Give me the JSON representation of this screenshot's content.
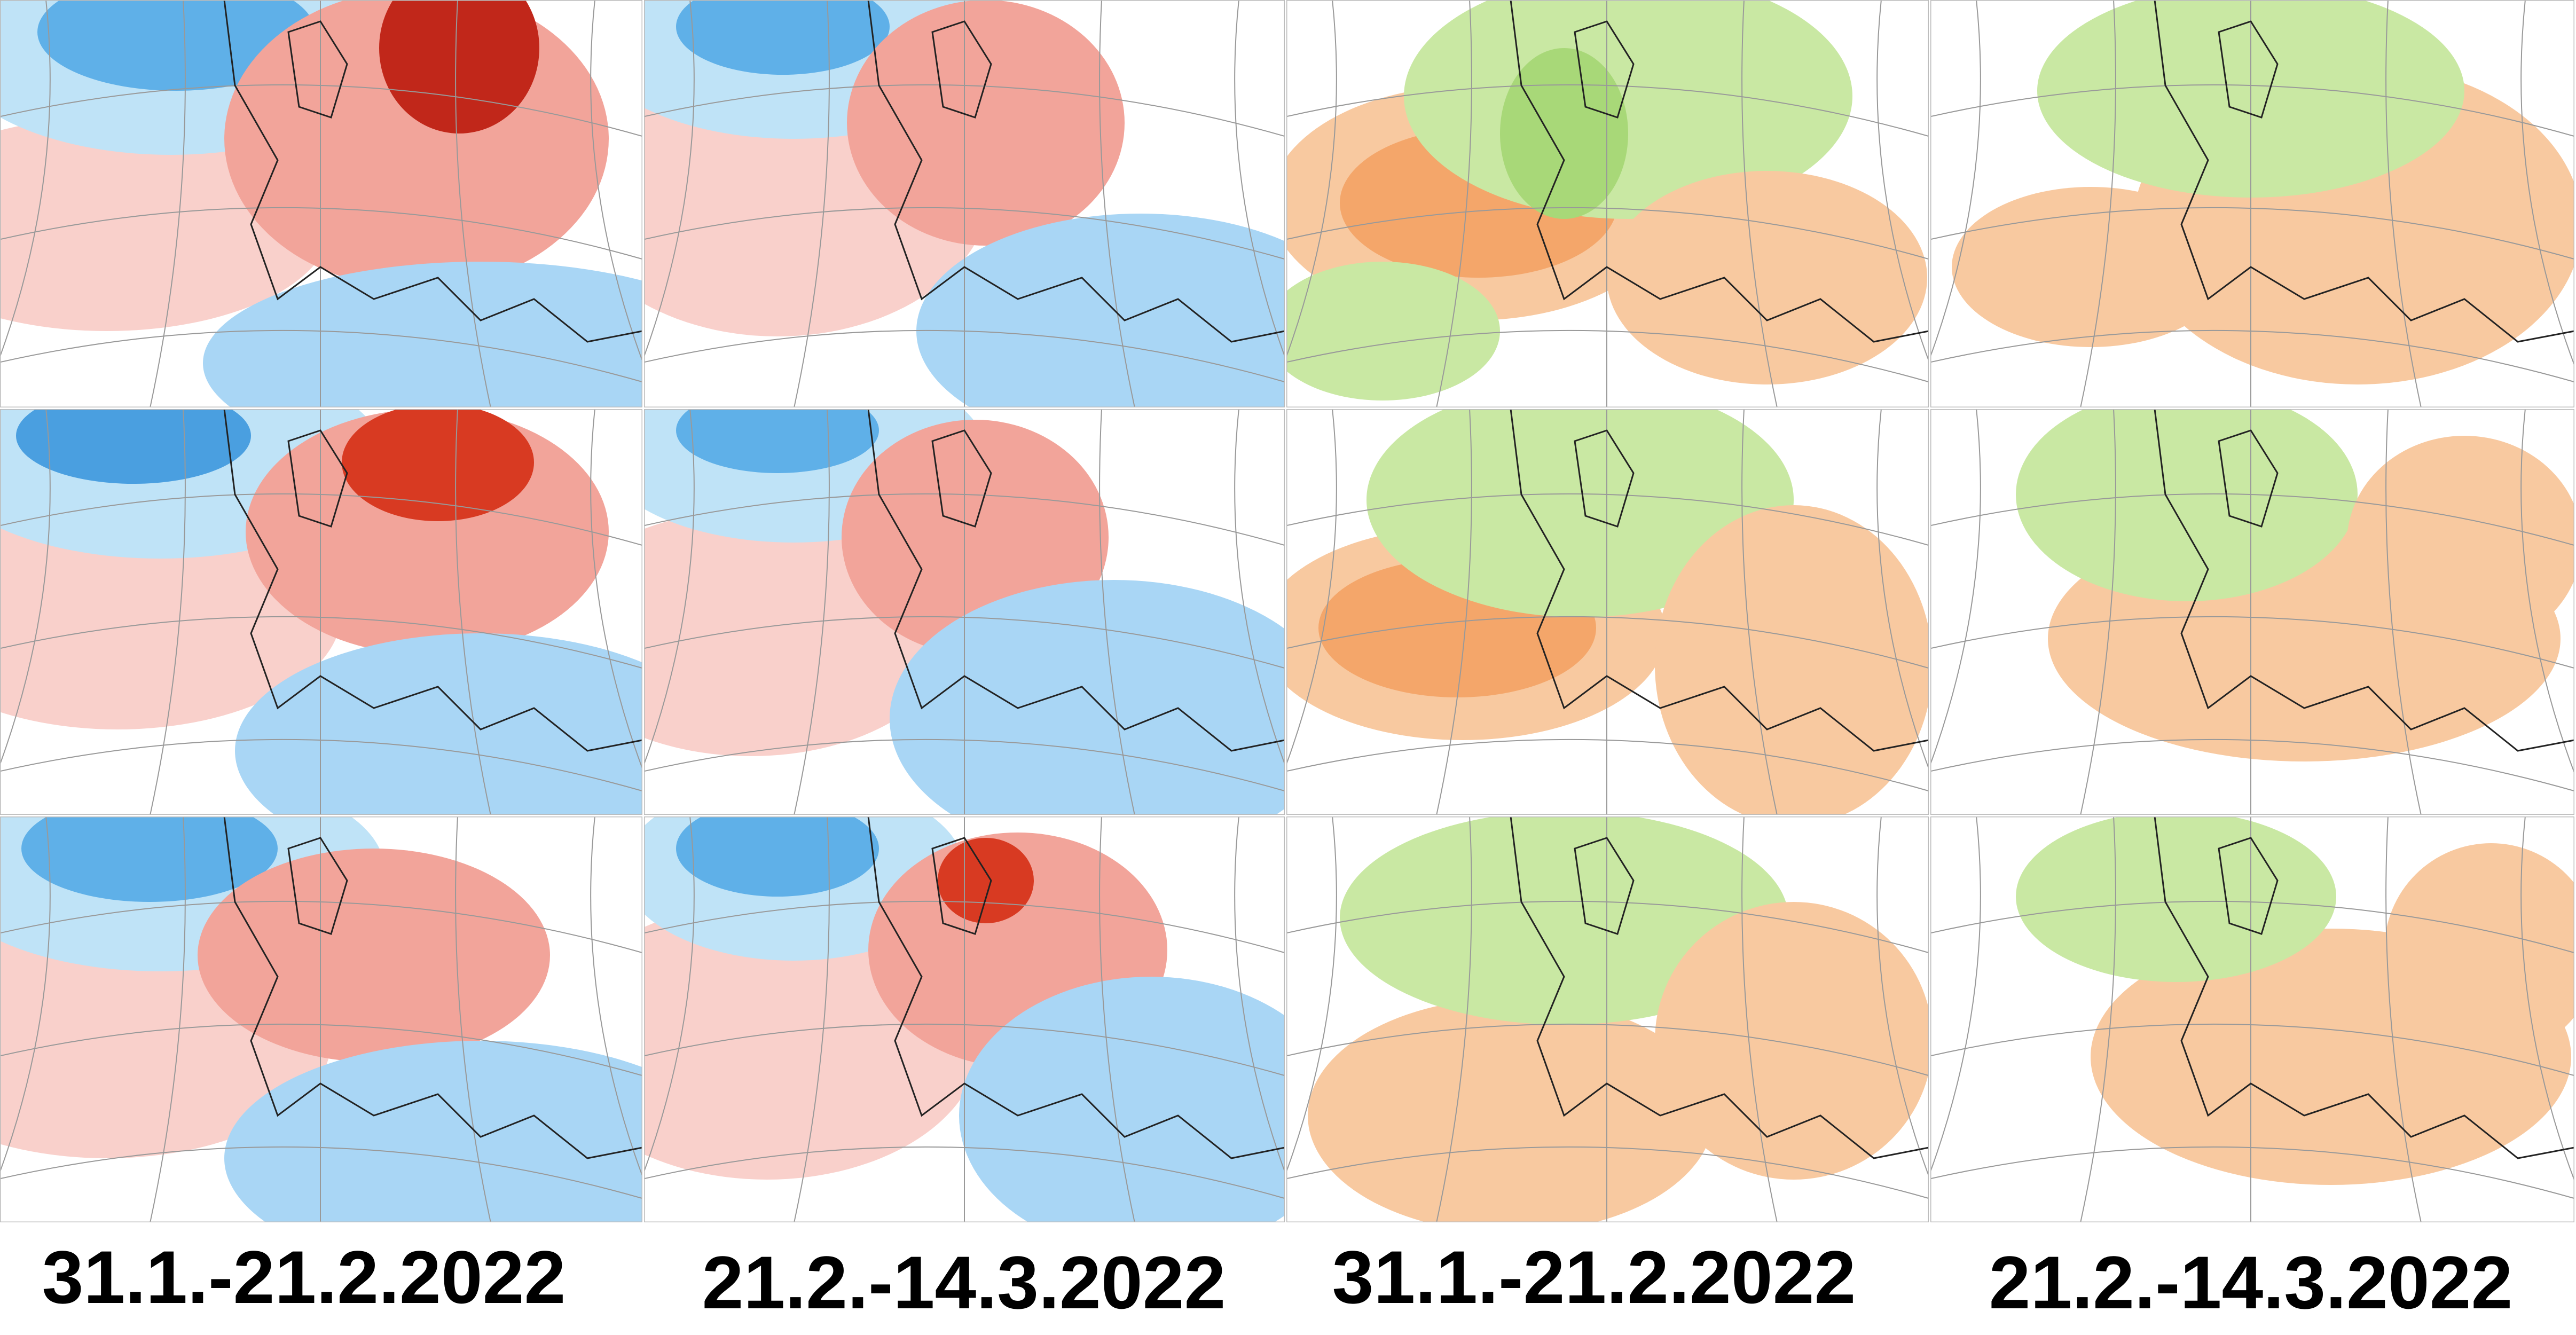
{
  "labels": [
    "31.1.-21.2.2022",
    "21.2.-14.3.2022",
    "31.1.-21.2.2022",
    "21.2.-14.3.2022"
  ]
}
